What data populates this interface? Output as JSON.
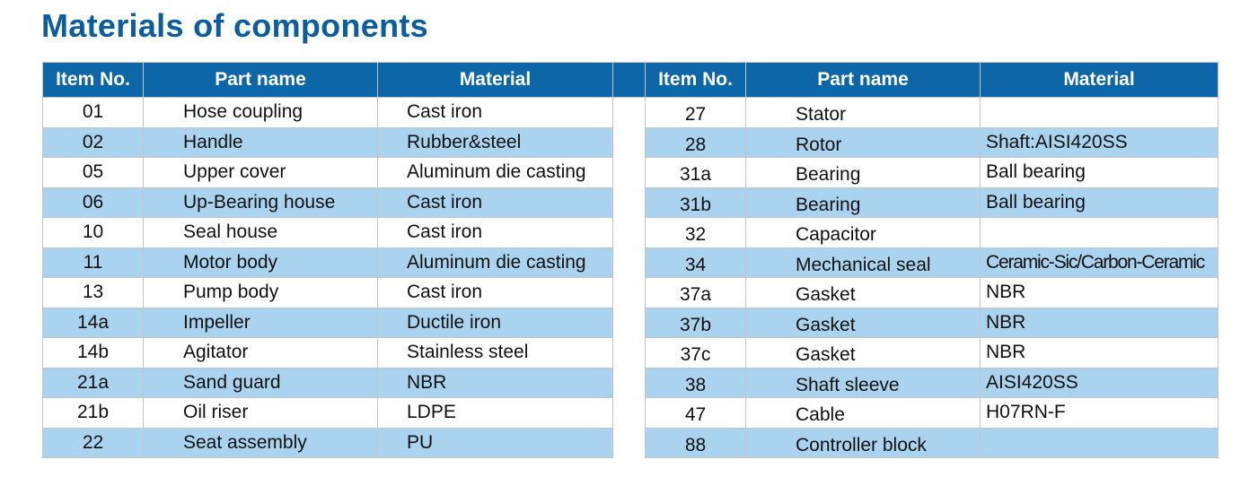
{
  "title": "Materials of components",
  "headers": {
    "item_no": "Item No.",
    "part_name": "Part name",
    "material": "Material"
  },
  "left": [
    {
      "item": "01",
      "part": "Hose coupling",
      "material": "Cast iron"
    },
    {
      "item": "02",
      "part": "Handle",
      "material": "Rubber&steel"
    },
    {
      "item": "05",
      "part": "Upper cover",
      "material": "Aluminum die casting"
    },
    {
      "item": "06",
      "part": "Up-Bearing house",
      "material": "Cast iron"
    },
    {
      "item": "10",
      "part": "Seal house",
      "material": "Cast iron"
    },
    {
      "item": "11",
      "part": "Motor body",
      "material": "Aluminum die casting"
    },
    {
      "item": "13",
      "part": "Pump body",
      "material": "Cast iron"
    },
    {
      "item": "14a",
      "part": "Impeller",
      "material": "Ductile iron"
    },
    {
      "item": "14b",
      "part": "Agitator",
      "material": "Stainless steel"
    },
    {
      "item": "21a",
      "part": "Sand guard",
      "material": "NBR"
    },
    {
      "item": "21b",
      "part": "Oil riser",
      "material": "LDPE"
    },
    {
      "item": "22",
      "part": "Seat assembly",
      "material": "PU"
    }
  ],
  "right": [
    {
      "item": "27",
      "part": "Stator",
      "material": ""
    },
    {
      "item": "28",
      "part": "Rotor",
      "material": "Shaft:AISI420SS"
    },
    {
      "item": "31a",
      "part": "Bearing",
      "material": "Ball bearing"
    },
    {
      "item": "31b",
      "part": "Bearing",
      "material": "Ball bearing"
    },
    {
      "item": "32",
      "part": "Capacitor",
      "material": ""
    },
    {
      "item": "34",
      "part": "Mechanical seal",
      "material": "Ceramic-Sic/Carbon-Ceramic"
    },
    {
      "item": "37a",
      "part": "Gasket",
      "material": "NBR"
    },
    {
      "item": "37b",
      "part": "Gasket",
      "material": "NBR"
    },
    {
      "item": "37c",
      "part": "Gasket",
      "material": "NBR"
    },
    {
      "item": "38",
      "part": "Shaft sleeve",
      "material": "AISI420SS"
    },
    {
      "item": "47",
      "part": "Cable",
      "material": "H07RN-F"
    },
    {
      "item": "88",
      "part": "Controller block",
      "material": ""
    }
  ],
  "colors": {
    "title": "#0a5ea0",
    "header_bg": "#0d66a8",
    "alt_row_bg": "#a9d3ee",
    "border": "#c4c4c4"
  }
}
